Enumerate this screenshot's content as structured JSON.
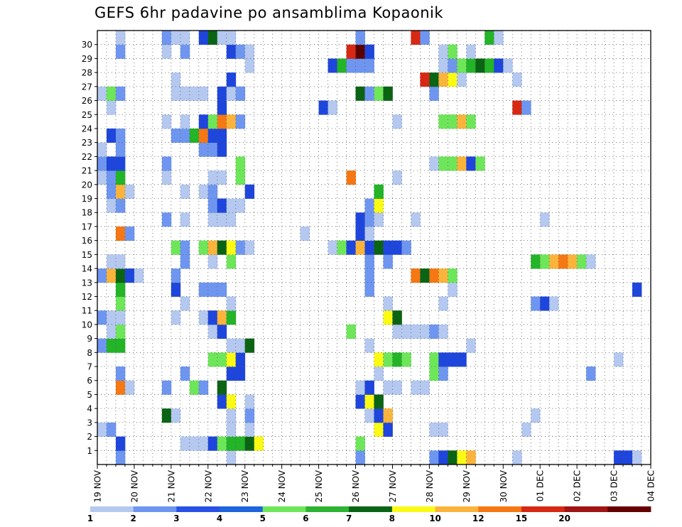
{
  "chart_data": {
    "type": "heatmap",
    "title": "GEFS 6hr padavine po ansamblima Kopaonik",
    "xlabel": "",
    "ylabel": "",
    "x_tick_labels": [
      "19 NOV",
      "20 NOV",
      "21 NOV",
      "22 NOV",
      "23 NOV",
      "24 NOV",
      "25 NOV",
      "26 NOV",
      "27 NOV",
      "28 NOV",
      "29 NOV",
      "30 NOV",
      "01 DEC",
      "02 DEC",
      "03 DEC",
      "04 DEC"
    ],
    "y_tick_labels": [
      "1",
      "2",
      "3",
      "4",
      "5",
      "6",
      "7",
      "8",
      "9",
      "10",
      "11",
      "12",
      "13",
      "14",
      "15",
      "16",
      "17",
      "18",
      "19",
      "20",
      "21",
      "22",
      "23",
      "24",
      "25",
      "26",
      "27",
      "28",
      "29",
      "30"
    ],
    "n_time_steps": 60,
    "steps_per_day": 4,
    "n_members": 31,
    "legend_labels": [
      "1",
      "2",
      "3",
      "4",
      "5",
      "6",
      "7",
      "8",
      "10",
      "12",
      "15",
      "20"
    ],
    "legend_colors": [
      "#b4c8f0",
      "#6e96f0",
      "#2850e6",
      "#1e64dc",
      "#6ee65a",
      "#2db432",
      "#0a6414",
      "#fafa14",
      "#fab43c",
      "#f57814",
      "#d72814",
      "#a01414",
      "#640000"
    ],
    "cell_colors": [
      "#b4c8f0",
      "#6e96f0",
      "#1e46dc",
      "#6ee65a",
      "#23b428",
      "#0a6414",
      "#fafa14",
      "#fab43c",
      "#f57814",
      "#d72814",
      "#a01414",
      "#5a0000"
    ],
    "cells": [
      [
        0,
        2,
        1
      ],
      [
        0,
        14,
        0
      ],
      [
        0,
        28,
        1
      ],
      [
        0,
        36,
        1
      ],
      [
        0,
        37,
        2
      ],
      [
        0,
        38,
        5
      ],
      [
        0,
        39,
        6
      ],
      [
        0,
        40,
        7
      ],
      [
        0,
        45,
        0
      ],
      [
        0,
        56,
        2
      ],
      [
        0,
        57,
        2
      ],
      [
        0,
        58,
        0
      ],
      [
        1,
        2,
        2
      ],
      [
        1,
        9,
        0
      ],
      [
        1,
        10,
        0
      ],
      [
        1,
        11,
        0
      ],
      [
        1,
        12,
        2
      ],
      [
        1,
        13,
        3
      ],
      [
        1,
        14,
        4
      ],
      [
        1,
        15,
        4
      ],
      [
        1,
        16,
        5
      ],
      [
        1,
        17,
        6
      ],
      [
        1,
        28,
        3
      ],
      [
        2,
        0,
        0
      ],
      [
        2,
        1,
        1
      ],
      [
        2,
        14,
        0
      ],
      [
        2,
        16,
        0
      ],
      [
        2,
        30,
        6
      ],
      [
        2,
        31,
        2
      ],
      [
        2,
        36,
        0
      ],
      [
        2,
        37,
        0
      ],
      [
        2,
        46,
        0
      ],
      [
        3,
        7,
        5
      ],
      [
        3,
        8,
        0
      ],
      [
        3,
        14,
        0
      ],
      [
        3,
        16,
        1
      ],
      [
        3,
        29,
        0
      ],
      [
        3,
        30,
        2
      ],
      [
        3,
        31,
        7
      ],
      [
        3,
        47,
        0
      ],
      [
        4,
        13,
        2
      ],
      [
        4,
        14,
        6
      ],
      [
        4,
        16,
        0
      ],
      [
        4,
        28,
        2
      ],
      [
        4,
        29,
        6
      ],
      [
        4,
        30,
        5
      ],
      [
        5,
        2,
        8
      ],
      [
        5,
        3,
        0
      ],
      [
        5,
        7,
        1
      ],
      [
        5,
        10,
        3
      ],
      [
        5,
        11,
        1
      ],
      [
        5,
        13,
        5
      ],
      [
        5,
        28,
        0
      ],
      [
        5,
        29,
        2
      ],
      [
        5,
        31,
        0
      ],
      [
        5,
        32,
        0
      ],
      [
        5,
        34,
        0
      ],
      [
        5,
        35,
        0
      ],
      [
        6,
        2,
        1
      ],
      [
        6,
        9,
        1
      ],
      [
        6,
        14,
        2
      ],
      [
        6,
        15,
        2
      ],
      [
        6,
        30,
        0
      ],
      [
        6,
        36,
        3
      ],
      [
        6,
        37,
        1
      ],
      [
        6,
        53,
        1
      ],
      [
        7,
        12,
        3
      ],
      [
        7,
        13,
        3
      ],
      [
        7,
        14,
        6
      ],
      [
        7,
        15,
        2
      ],
      [
        7,
        30,
        6
      ],
      [
        7,
        31,
        3
      ],
      [
        7,
        32,
        4
      ],
      [
        7,
        33,
        3
      ],
      [
        7,
        36,
        3
      ],
      [
        7,
        37,
        2
      ],
      [
        7,
        38,
        2
      ],
      [
        7,
        39,
        2
      ],
      [
        7,
        56,
        0
      ],
      [
        8,
        0,
        1
      ],
      [
        8,
        1,
        4
      ],
      [
        8,
        2,
        4
      ],
      [
        8,
        14,
        0
      ],
      [
        8,
        15,
        0
      ],
      [
        8,
        16,
        5
      ],
      [
        8,
        29,
        0
      ],
      [
        8,
        40,
        0
      ],
      [
        9,
        1,
        0
      ],
      [
        9,
        2,
        3
      ],
      [
        9,
        12,
        0
      ],
      [
        9,
        13,
        2
      ],
      [
        9,
        27,
        3
      ],
      [
        9,
        32,
        0
      ],
      [
        9,
        33,
        0
      ],
      [
        9,
        34,
        0
      ],
      [
        9,
        35,
        0
      ],
      [
        9,
        36,
        1
      ],
      [
        9,
        37,
        0
      ],
      [
        10,
        0,
        1
      ],
      [
        10,
        1,
        0
      ],
      [
        10,
        2,
        0
      ],
      [
        10,
        8,
        0
      ],
      [
        10,
        11,
        0
      ],
      [
        10,
        12,
        2
      ],
      [
        10,
        13,
        7
      ],
      [
        10,
        14,
        4
      ],
      [
        10,
        31,
        6
      ],
      [
        10,
        32,
        5
      ],
      [
        11,
        2,
        3
      ],
      [
        11,
        9,
        0
      ],
      [
        11,
        14,
        0
      ],
      [
        11,
        31,
        0
      ],
      [
        11,
        37,
        0
      ],
      [
        11,
        47,
        1
      ],
      [
        11,
        48,
        2
      ],
      [
        11,
        49,
        0
      ],
      [
        12,
        2,
        4
      ],
      [
        12,
        8,
        2
      ],
      [
        12,
        11,
        1
      ],
      [
        12,
        12,
        1
      ],
      [
        12,
        13,
        1
      ],
      [
        12,
        29,
        1
      ],
      [
        12,
        38,
        0
      ],
      [
        12,
        58,
        2
      ],
      [
        13,
        0,
        1
      ],
      [
        13,
        1,
        7
      ],
      [
        13,
        2,
        5
      ],
      [
        13,
        3,
        2
      ],
      [
        13,
        4,
        0
      ],
      [
        13,
        8,
        1
      ],
      [
        13,
        29,
        1
      ],
      [
        13,
        34,
        8
      ],
      [
        13,
        35,
        5
      ],
      [
        13,
        36,
        8
      ],
      [
        13,
        37,
        7
      ],
      [
        13,
        38,
        3
      ],
      [
        14,
        1,
        0
      ],
      [
        14,
        2,
        0
      ],
      [
        14,
        9,
        1
      ],
      [
        14,
        12,
        0
      ],
      [
        14,
        14,
        3
      ],
      [
        14,
        29,
        1
      ],
      [
        14,
        31,
        1
      ],
      [
        14,
        47,
        4
      ],
      [
        14,
        48,
        3
      ],
      [
        14,
        49,
        7
      ],
      [
        14,
        50,
        8
      ],
      [
        14,
        51,
        7
      ],
      [
        14,
        52,
        3
      ],
      [
        14,
        53,
        0
      ],
      [
        15,
        8,
        3
      ],
      [
        15,
        9,
        1
      ],
      [
        15,
        11,
        3
      ],
      [
        15,
        12,
        7
      ],
      [
        15,
        13,
        5
      ],
      [
        15,
        14,
        6
      ],
      [
        15,
        15,
        1
      ],
      [
        15,
        16,
        0
      ],
      [
        15,
        25,
        0
      ],
      [
        15,
        26,
        3
      ],
      [
        15,
        27,
        2
      ],
      [
        15,
        28,
        7
      ],
      [
        15,
        29,
        2
      ],
      [
        15,
        30,
        5
      ],
      [
        15,
        31,
        2
      ],
      [
        15,
        32,
        2
      ],
      [
        15,
        33,
        1
      ],
      [
        16,
        2,
        8
      ],
      [
        16,
        3,
        1
      ],
      [
        16,
        22,
        0
      ],
      [
        16,
        28,
        2
      ],
      [
        16,
        29,
        0
      ],
      [
        17,
        7,
        1
      ],
      [
        17,
        9,
        0
      ],
      [
        17,
        12,
        0
      ],
      [
        17,
        13,
        0
      ],
      [
        17,
        14,
        0
      ],
      [
        17,
        28,
        2
      ],
      [
        17,
        29,
        1
      ],
      [
        17,
        30,
        0
      ],
      [
        17,
        34,
        0
      ],
      [
        17,
        48,
        0
      ],
      [
        18,
        1,
        0
      ],
      [
        18,
        2,
        1
      ],
      [
        18,
        12,
        1
      ],
      [
        18,
        13,
        2
      ],
      [
        18,
        14,
        0
      ],
      [
        18,
        15,
        0
      ],
      [
        18,
        29,
        1
      ],
      [
        18,
        30,
        6
      ],
      [
        19,
        1,
        1
      ],
      [
        19,
        2,
        7
      ],
      [
        19,
        3,
        0
      ],
      [
        19,
        9,
        0
      ],
      [
        19,
        11,
        0
      ],
      [
        19,
        12,
        1
      ],
      [
        19,
        16,
        2
      ],
      [
        19,
        30,
        4
      ],
      [
        20,
        0,
        0
      ],
      [
        20,
        1,
        1
      ],
      [
        20,
        2,
        4
      ],
      [
        20,
        7,
        0
      ],
      [
        20,
        12,
        0
      ],
      [
        20,
        13,
        0
      ],
      [
        20,
        15,
        3
      ],
      [
        20,
        27,
        8
      ],
      [
        20,
        32,
        0
      ],
      [
        21,
        0,
        1
      ],
      [
        21,
        1,
        2
      ],
      [
        21,
        2,
        2
      ],
      [
        21,
        7,
        1
      ],
      [
        21,
        15,
        3
      ],
      [
        21,
        36,
        0
      ],
      [
        21,
        37,
        3
      ],
      [
        21,
        38,
        3
      ],
      [
        21,
        39,
        7
      ],
      [
        21,
        40,
        2
      ],
      [
        21,
        41,
        3
      ],
      [
        22,
        0,
        0
      ],
      [
        22,
        2,
        1
      ],
      [
        22,
        11,
        1
      ],
      [
        22,
        12,
        1
      ],
      [
        22,
        13,
        2
      ],
      [
        23,
        1,
        2
      ],
      [
        23,
        2,
        1
      ],
      [
        23,
        8,
        1
      ],
      [
        23,
        9,
        1
      ],
      [
        23,
        10,
        4
      ],
      [
        23,
        11,
        8
      ],
      [
        23,
        12,
        2
      ],
      [
        23,
        13,
        2
      ],
      [
        24,
        7,
        0
      ],
      [
        24,
        9,
        0
      ],
      [
        24,
        11,
        2
      ],
      [
        24,
        12,
        3
      ],
      [
        24,
        13,
        8
      ],
      [
        24,
        14,
        7
      ],
      [
        24,
        15,
        1
      ],
      [
        24,
        32,
        0
      ],
      [
        24,
        37,
        3
      ],
      [
        24,
        38,
        3
      ],
      [
        24,
        39,
        7
      ],
      [
        24,
        40,
        3
      ],
      [
        25,
        1,
        0
      ],
      [
        25,
        13,
        2
      ],
      [
        25,
        24,
        2
      ],
      [
        25,
        25,
        0
      ],
      [
        25,
        45,
        9
      ],
      [
        25,
        46,
        1
      ],
      [
        26,
        0,
        0
      ],
      [
        26,
        1,
        3
      ],
      [
        26,
        2,
        1
      ],
      [
        26,
        8,
        0
      ],
      [
        26,
        9,
        0
      ],
      [
        26,
        10,
        0
      ],
      [
        26,
        11,
        0
      ],
      [
        26,
        13,
        2
      ],
      [
        26,
        14,
        0
      ],
      [
        26,
        15,
        1
      ],
      [
        26,
        28,
        5
      ],
      [
        26,
        29,
        1
      ],
      [
        26,
        30,
        3
      ],
      [
        26,
        31,
        5
      ],
      [
        26,
        36,
        1
      ],
      [
        27,
        8,
        0
      ],
      [
        27,
        14,
        2
      ],
      [
        27,
        35,
        9
      ],
      [
        27,
        36,
        5
      ],
      [
        27,
        37,
        7
      ],
      [
        27,
        38,
        6
      ],
      [
        27,
        39,
        0
      ],
      [
        27,
        45,
        0
      ],
      [
        28,
        16,
        0
      ],
      [
        28,
        25,
        2
      ],
      [
        28,
        26,
        4
      ],
      [
        28,
        27,
        1
      ],
      [
        28,
        28,
        1
      ],
      [
        28,
        29,
        1
      ],
      [
        28,
        37,
        0
      ],
      [
        28,
        38,
        1
      ],
      [
        28,
        39,
        3
      ],
      [
        28,
        40,
        4
      ],
      [
        28,
        41,
        5
      ],
      [
        28,
        42,
        4
      ],
      [
        28,
        43,
        2
      ],
      [
        28,
        44,
        0
      ],
      [
        29,
        2,
        1
      ],
      [
        29,
        7,
        0
      ],
      [
        29,
        9,
        1
      ],
      [
        29,
        14,
        2
      ],
      [
        29,
        15,
        1
      ],
      [
        29,
        16,
        0
      ],
      [
        29,
        27,
        9
      ],
      [
        29,
        28,
        11
      ],
      [
        29,
        29,
        2
      ],
      [
        29,
        37,
        0
      ],
      [
        29,
        38,
        3
      ],
      [
        29,
        40,
        0
      ],
      [
        30,
        2,
        0
      ],
      [
        30,
        7,
        1
      ],
      [
        30,
        8,
        0
      ],
      [
        30,
        9,
        0
      ],
      [
        30,
        11,
        2
      ],
      [
        30,
        12,
        5
      ],
      [
        30,
        13,
        0
      ],
      [
        30,
        14,
        0
      ],
      [
        30,
        28,
        1
      ],
      [
        30,
        34,
        9
      ],
      [
        30,
        35,
        1
      ],
      [
        30,
        42,
        4
      ],
      [
        30,
        43,
        0
      ]
    ]
  }
}
